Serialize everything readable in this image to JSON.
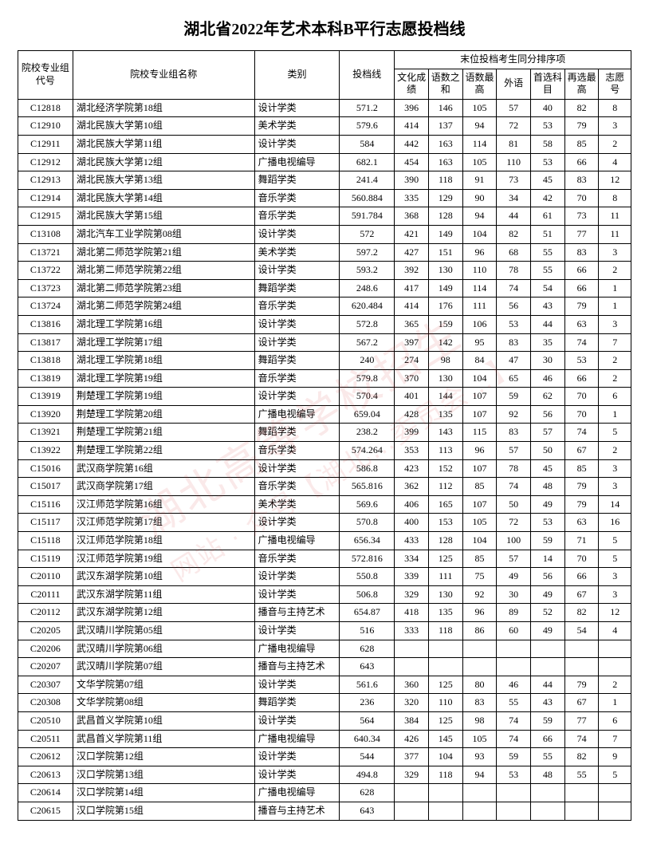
{
  "title": "湖北省2022年艺术本科B平行志愿投档线",
  "watermark_line1": "湖北高等学校招生",
  "watermark_line2": "网站 · 众号【湖北…委员会…】",
  "columns": {
    "code": "院校专业组代号",
    "name": "院校专业组名称",
    "category": "类别",
    "cutoff": "投档线",
    "tiebreak_header": "末位投档考生同分排序项",
    "culture": "文化成绩",
    "yushu_sum": "语数之和",
    "yushu_max": "语数最高",
    "foreign": "外语",
    "first_sub": "首选科目",
    "resel_max": "再选最高",
    "wish_no": "志愿号"
  },
  "col_widths": {
    "code": 58,
    "name": 192,
    "category": 90,
    "cutoff": 58,
    "culture": 36,
    "yushu_sum": 36,
    "yushu_max": 36,
    "foreign": 36,
    "first_sub": 36,
    "resel_max": 36,
    "wish_no": 34
  },
  "rows": [
    {
      "code": "C12818",
      "name": "湖北经济学院第18组",
      "category": "设计学类",
      "cutoff": "571.2",
      "culture": "396",
      "yushu_sum": "146",
      "yushu_max": "105",
      "foreign": "57",
      "first_sub": "40",
      "resel_max": "82",
      "wish_no": "8"
    },
    {
      "code": "C12910",
      "name": "湖北民族大学第10组",
      "category": "美术学类",
      "cutoff": "579.6",
      "culture": "414",
      "yushu_sum": "137",
      "yushu_max": "94",
      "foreign": "72",
      "first_sub": "53",
      "resel_max": "79",
      "wish_no": "3"
    },
    {
      "code": "C12911",
      "name": "湖北民族大学第11组",
      "category": "设计学类",
      "cutoff": "584",
      "culture": "442",
      "yushu_sum": "163",
      "yushu_max": "114",
      "foreign": "81",
      "first_sub": "58",
      "resel_max": "85",
      "wish_no": "2"
    },
    {
      "code": "C12912",
      "name": "湖北民族大学第12组",
      "category": "广播电视编导",
      "cutoff": "682.1",
      "culture": "454",
      "yushu_sum": "163",
      "yushu_max": "105",
      "foreign": "110",
      "first_sub": "53",
      "resel_max": "66",
      "wish_no": "4"
    },
    {
      "code": "C12913",
      "name": "湖北民族大学第13组",
      "category": "舞蹈学类",
      "cutoff": "241.4",
      "culture": "390",
      "yushu_sum": "118",
      "yushu_max": "91",
      "foreign": "73",
      "first_sub": "45",
      "resel_max": "83",
      "wish_no": "12"
    },
    {
      "code": "C12914",
      "name": "湖北民族大学第14组",
      "category": "音乐学类",
      "cutoff": "560.884",
      "culture": "335",
      "yushu_sum": "129",
      "yushu_max": "90",
      "foreign": "34",
      "first_sub": "42",
      "resel_max": "70",
      "wish_no": "8"
    },
    {
      "code": "C12915",
      "name": "湖北民族大学第15组",
      "category": "音乐学类",
      "cutoff": "591.784",
      "culture": "368",
      "yushu_sum": "128",
      "yushu_max": "94",
      "foreign": "44",
      "first_sub": "61",
      "resel_max": "73",
      "wish_no": "11"
    },
    {
      "code": "C13108",
      "name": "湖北汽车工业学院第08组",
      "category": "设计学类",
      "cutoff": "572",
      "culture": "421",
      "yushu_sum": "149",
      "yushu_max": "104",
      "foreign": "82",
      "first_sub": "51",
      "resel_max": "77",
      "wish_no": "11"
    },
    {
      "code": "C13721",
      "name": "湖北第二师范学院第21组",
      "category": "美术学类",
      "cutoff": "597.2",
      "culture": "427",
      "yushu_sum": "151",
      "yushu_max": "96",
      "foreign": "68",
      "first_sub": "55",
      "resel_max": "83",
      "wish_no": "3"
    },
    {
      "code": "C13722",
      "name": "湖北第二师范学院第22组",
      "category": "设计学类",
      "cutoff": "593.2",
      "culture": "392",
      "yushu_sum": "130",
      "yushu_max": "110",
      "foreign": "78",
      "first_sub": "55",
      "resel_max": "66",
      "wish_no": "2"
    },
    {
      "code": "C13723",
      "name": "湖北第二师范学院第23组",
      "category": "舞蹈学类",
      "cutoff": "248.6",
      "culture": "417",
      "yushu_sum": "149",
      "yushu_max": "114",
      "foreign": "74",
      "first_sub": "54",
      "resel_max": "66",
      "wish_no": "1"
    },
    {
      "code": "C13724",
      "name": "湖北第二师范学院第24组",
      "category": "音乐学类",
      "cutoff": "620.484",
      "culture": "414",
      "yushu_sum": "176",
      "yushu_max": "111",
      "foreign": "56",
      "first_sub": "43",
      "resel_max": "79",
      "wish_no": "1"
    },
    {
      "code": "C13816",
      "name": "湖北理工学院第16组",
      "category": "设计学类",
      "cutoff": "572.8",
      "culture": "365",
      "yushu_sum": "159",
      "yushu_max": "106",
      "foreign": "53",
      "first_sub": "44",
      "resel_max": "63",
      "wish_no": "3"
    },
    {
      "code": "C13817",
      "name": "湖北理工学院第17组",
      "category": "设计学类",
      "cutoff": "567.2",
      "culture": "397",
      "yushu_sum": "142",
      "yushu_max": "95",
      "foreign": "83",
      "first_sub": "35",
      "resel_max": "74",
      "wish_no": "7"
    },
    {
      "code": "C13818",
      "name": "湖北理工学院第18组",
      "category": "舞蹈学类",
      "cutoff": "240",
      "culture": "274",
      "yushu_sum": "98",
      "yushu_max": "84",
      "foreign": "47",
      "first_sub": "30",
      "resel_max": "53",
      "wish_no": "2"
    },
    {
      "code": "C13819",
      "name": "湖北理工学院第19组",
      "category": "音乐学类",
      "cutoff": "579.8",
      "culture": "370",
      "yushu_sum": "130",
      "yushu_max": "104",
      "foreign": "65",
      "first_sub": "46",
      "resel_max": "66",
      "wish_no": "2"
    },
    {
      "code": "C13919",
      "name": "荆楚理工学院第19组",
      "category": "设计学类",
      "cutoff": "570.4",
      "culture": "401",
      "yushu_sum": "144",
      "yushu_max": "107",
      "foreign": "59",
      "first_sub": "62",
      "resel_max": "70",
      "wish_no": "6"
    },
    {
      "code": "C13920",
      "name": "荆楚理工学院第20组",
      "category": "广播电视编导",
      "cutoff": "659.04",
      "culture": "428",
      "yushu_sum": "135",
      "yushu_max": "107",
      "foreign": "92",
      "first_sub": "56",
      "resel_max": "70",
      "wish_no": "1"
    },
    {
      "code": "C13921",
      "name": "荆楚理工学院第21组",
      "category": "舞蹈学类",
      "cutoff": "238.2",
      "culture": "399",
      "yushu_sum": "143",
      "yushu_max": "115",
      "foreign": "83",
      "first_sub": "57",
      "resel_max": "74",
      "wish_no": "5"
    },
    {
      "code": "C13922",
      "name": "荆楚理工学院第22组",
      "category": "音乐学类",
      "cutoff": "574.264",
      "culture": "353",
      "yushu_sum": "113",
      "yushu_max": "96",
      "foreign": "57",
      "first_sub": "50",
      "resel_max": "67",
      "wish_no": "2"
    },
    {
      "code": "C15016",
      "name": "武汉商学院第16组",
      "category": "设计学类",
      "cutoff": "586.8",
      "culture": "423",
      "yushu_sum": "152",
      "yushu_max": "107",
      "foreign": "78",
      "first_sub": "45",
      "resel_max": "85",
      "wish_no": "3"
    },
    {
      "code": "C15017",
      "name": "武汉商学院第17组",
      "category": "音乐学类",
      "cutoff": "565.816",
      "culture": "362",
      "yushu_sum": "112",
      "yushu_max": "85",
      "foreign": "74",
      "first_sub": "48",
      "resel_max": "79",
      "wish_no": "3"
    },
    {
      "code": "C15116",
      "name": "汉江师范学院第16组",
      "category": "美术学类",
      "cutoff": "569.6",
      "culture": "406",
      "yushu_sum": "165",
      "yushu_max": "107",
      "foreign": "50",
      "first_sub": "49",
      "resel_max": "79",
      "wish_no": "14"
    },
    {
      "code": "C15117",
      "name": "汉江师范学院第17组",
      "category": "设计学类",
      "cutoff": "570.8",
      "culture": "400",
      "yushu_sum": "153",
      "yushu_max": "105",
      "foreign": "72",
      "first_sub": "53",
      "resel_max": "63",
      "wish_no": "16"
    },
    {
      "code": "C15118",
      "name": "汉江师范学院第18组",
      "category": "广播电视编导",
      "cutoff": "656.34",
      "culture": "433",
      "yushu_sum": "128",
      "yushu_max": "104",
      "foreign": "100",
      "first_sub": "59",
      "resel_max": "71",
      "wish_no": "5"
    },
    {
      "code": "C15119",
      "name": "汉江师范学院第19组",
      "category": "音乐学类",
      "cutoff": "572.816",
      "culture": "334",
      "yushu_sum": "125",
      "yushu_max": "85",
      "foreign": "57",
      "first_sub": "14",
      "resel_max": "70",
      "wish_no": "5"
    },
    {
      "code": "C20110",
      "name": "武汉东湖学院第10组",
      "category": "设计学类",
      "cutoff": "550.8",
      "culture": "339",
      "yushu_sum": "111",
      "yushu_max": "75",
      "foreign": "49",
      "first_sub": "56",
      "resel_max": "66",
      "wish_no": "3"
    },
    {
      "code": "C20111",
      "name": "武汉东湖学院第11组",
      "category": "设计学类",
      "cutoff": "506.8",
      "culture": "329",
      "yushu_sum": "130",
      "yushu_max": "92",
      "foreign": "30",
      "first_sub": "49",
      "resel_max": "67",
      "wish_no": "3"
    },
    {
      "code": "C20112",
      "name": "武汉东湖学院第12组",
      "category": "播音与主持艺术",
      "cutoff": "654.87",
      "culture": "418",
      "yushu_sum": "135",
      "yushu_max": "96",
      "foreign": "89",
      "first_sub": "52",
      "resel_max": "82",
      "wish_no": "12"
    },
    {
      "code": "C20205",
      "name": "武汉晴川学院第05组",
      "category": "设计学类",
      "cutoff": "516",
      "culture": "333",
      "yushu_sum": "118",
      "yushu_max": "86",
      "foreign": "60",
      "first_sub": "49",
      "resel_max": "54",
      "wish_no": "4"
    },
    {
      "code": "C20206",
      "name": "武汉晴川学院第06组",
      "category": "广播电视编导",
      "cutoff": "628",
      "culture": "",
      "yushu_sum": "",
      "yushu_max": "",
      "foreign": "",
      "first_sub": "",
      "resel_max": "",
      "wish_no": ""
    },
    {
      "code": "C20207",
      "name": "武汉晴川学院第07组",
      "category": "播音与主持艺术",
      "cutoff": "643",
      "culture": "",
      "yushu_sum": "",
      "yushu_max": "",
      "foreign": "",
      "first_sub": "",
      "resel_max": "",
      "wish_no": ""
    },
    {
      "code": "C20307",
      "name": "文华学院第07组",
      "category": "设计学类",
      "cutoff": "561.6",
      "culture": "360",
      "yushu_sum": "125",
      "yushu_max": "80",
      "foreign": "46",
      "first_sub": "44",
      "resel_max": "79",
      "wish_no": "2"
    },
    {
      "code": "C20308",
      "name": "文华学院第08组",
      "category": "舞蹈学类",
      "cutoff": "236",
      "culture": "320",
      "yushu_sum": "110",
      "yushu_max": "83",
      "foreign": "55",
      "first_sub": "43",
      "resel_max": "67",
      "wish_no": "1"
    },
    {
      "code": "C20510",
      "name": "武昌首义学院第10组",
      "category": "设计学类",
      "cutoff": "564",
      "culture": "384",
      "yushu_sum": "125",
      "yushu_max": "98",
      "foreign": "74",
      "first_sub": "59",
      "resel_max": "77",
      "wish_no": "6"
    },
    {
      "code": "C20511",
      "name": "武昌首义学院第11组",
      "category": "广播电视编导",
      "cutoff": "640.34",
      "culture": "426",
      "yushu_sum": "145",
      "yushu_max": "105",
      "foreign": "74",
      "first_sub": "66",
      "resel_max": "74",
      "wish_no": "7"
    },
    {
      "code": "C20612",
      "name": "汉口学院第12组",
      "category": "设计学类",
      "cutoff": "544",
      "culture": "377",
      "yushu_sum": "104",
      "yushu_max": "93",
      "foreign": "59",
      "first_sub": "55",
      "resel_max": "82",
      "wish_no": "9"
    },
    {
      "code": "C20613",
      "name": "汉口学院第13组",
      "category": "设计学类",
      "cutoff": "494.8",
      "culture": "329",
      "yushu_sum": "118",
      "yushu_max": "94",
      "foreign": "53",
      "first_sub": "48",
      "resel_max": "55",
      "wish_no": "5"
    },
    {
      "code": "C20614",
      "name": "汉口学院第14组",
      "category": "广播电视编导",
      "cutoff": "628",
      "culture": "",
      "yushu_sum": "",
      "yushu_max": "",
      "foreign": "",
      "first_sub": "",
      "resel_max": "",
      "wish_no": ""
    },
    {
      "code": "C20615",
      "name": "汉口学院第15组",
      "category": "播音与主持艺术",
      "cutoff": "643",
      "culture": "",
      "yushu_sum": "",
      "yushu_max": "",
      "foreign": "",
      "first_sub": "",
      "resel_max": "",
      "wish_no": ""
    }
  ]
}
